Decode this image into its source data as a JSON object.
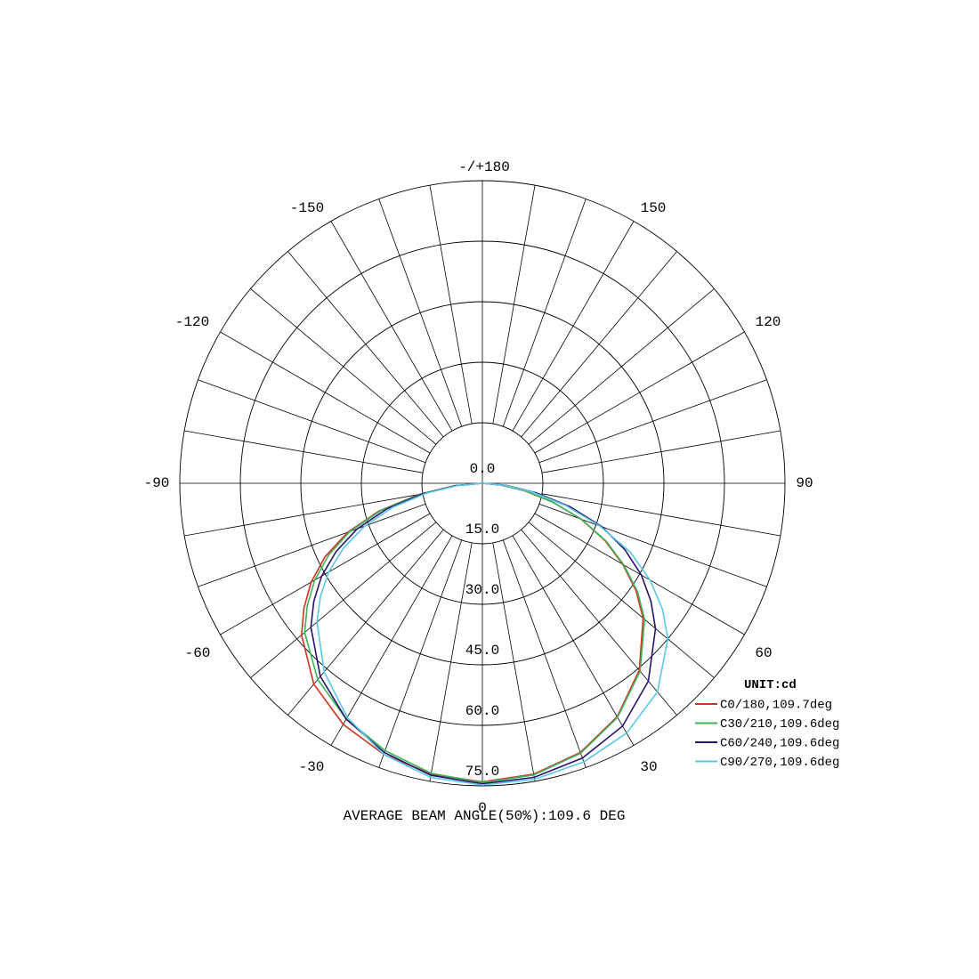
{
  "chart_data": {
    "type": "polar",
    "unit_label": "UNIT:cd",
    "caption": "AVERAGE BEAM ANGLE(50%):109.6 DEG",
    "angle_labels": [
      {
        "angle": 180,
        "text": "-/+180"
      },
      {
        "angle": 150,
        "text": "150"
      },
      {
        "angle": -150,
        "text": "-150"
      },
      {
        "angle": 120,
        "text": "120"
      },
      {
        "angle": -120,
        "text": "-120"
      },
      {
        "angle": 90,
        "text": "90"
      },
      {
        "angle": -90,
        "text": "-90"
      },
      {
        "angle": 60,
        "text": "60"
      },
      {
        "angle": -60,
        "text": "-60"
      },
      {
        "angle": 30,
        "text": "30"
      },
      {
        "angle": -30,
        "text": "-30"
      },
      {
        "angle": 0,
        "text": "0"
      }
    ],
    "radial_ticks": [
      "0.0",
      "15.0",
      "30.0",
      "45.0",
      "60.0",
      "75.0"
    ],
    "radial_max": 75,
    "series": [
      {
        "name": "C0/180,109.7deg",
        "color": "#d2321e",
        "angles": [
          0,
          10,
          20,
          30,
          40,
          50,
          55,
          60,
          65,
          70,
          75,
          80,
          85,
          90
        ],
        "values": [
          74.0,
          73.2,
          71.0,
          66.8,
          60.5,
          52.0,
          46.5,
          40.2,
          33.5,
          26.0,
          18.0,
          10.5,
          4.5,
          0.0
        ],
        "values_neg": [
          74.0,
          73.2,
          71.5,
          69.0,
          65.0,
          58.5,
          54.0,
          49.0,
          43.0,
          35.5,
          26.5,
          16.0,
          7.0,
          0.0
        ]
      },
      {
        "name": "C30/210,109.6deg",
        "color": "#3cb45a",
        "angles": [
          0,
          10,
          20,
          30,
          40,
          50,
          55,
          60,
          65,
          70,
          75,
          80,
          85,
          90
        ],
        "values": [
          74.2,
          73.4,
          71.2,
          67.0,
          60.8,
          52.5,
          47.0,
          40.5,
          33.8,
          26.2,
          18.2,
          10.6,
          4.6,
          0.0
        ],
        "values_neg": [
          74.2,
          73.0,
          70.5,
          67.5,
          63.5,
          57.5,
          53.0,
          48.0,
          42.0,
          35.0,
          26.0,
          15.5,
          6.8,
          0.0
        ]
      },
      {
        "name": "C60/240,109.6deg",
        "color": "#28146e",
        "angles": [
          0,
          10,
          20,
          30,
          40,
          50,
          55,
          60,
          65,
          70,
          75,
          80,
          85,
          90
        ],
        "values": [
          74.5,
          74.0,
          72.5,
          69.5,
          64.0,
          56.0,
          51.0,
          45.5,
          39.0,
          31.5,
          22.5,
          13.5,
          6.0,
          0.0
        ],
        "values_neg": [
          74.5,
          73.5,
          71.0,
          67.5,
          62.5,
          55.5,
          51.0,
          46.0,
          40.0,
          33.0,
          24.5,
          15.0,
          6.5,
          0.0
        ]
      },
      {
        "name": "C90/270,109.6deg",
        "color": "#5ac8e6",
        "angles": [
          0,
          10,
          20,
          30,
          40,
          50,
          55,
          60,
          65,
          70,
          75,
          80,
          85,
          90
        ],
        "values": [
          74.8,
          74.5,
          73.5,
          71.5,
          67.5,
          60.0,
          54.5,
          48.0,
          40.5,
          31.0,
          21.5,
          12.5,
          5.5,
          0.0
        ],
        "values_neg": [
          74.8,
          74.0,
          71.5,
          67.0,
          61.0,
          53.5,
          49.0,
          44.0,
          38.0,
          31.0,
          23.0,
          14.0,
          6.0,
          0.0
        ]
      }
    ]
  }
}
